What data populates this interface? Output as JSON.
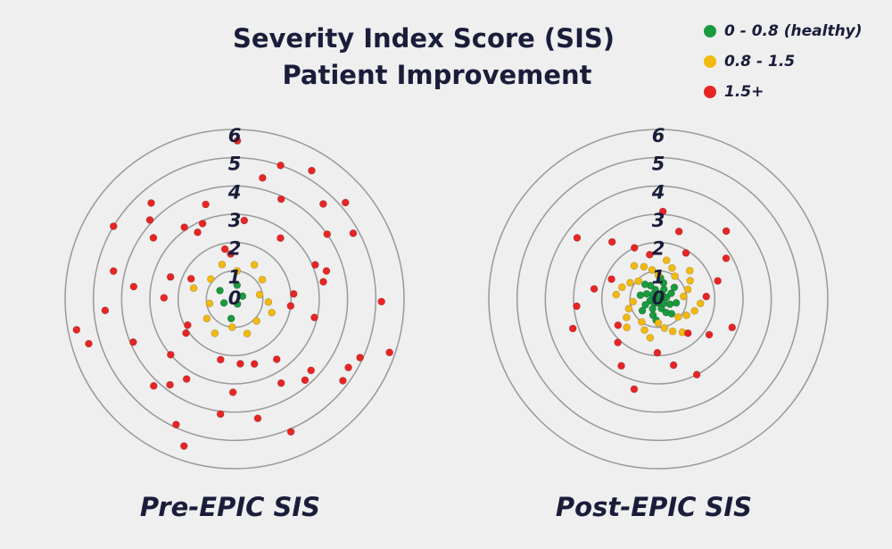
{
  "chart_data": {
    "type": "polar-scatter",
    "title": [
      "Severity Index Score (SIS)",
      "Patient Improvement"
    ],
    "series": [
      {
        "name": "0 - 0.8 (healthy)",
        "color": "#1a9a3e"
      },
      {
        "name": "0.8 - 1.5",
        "color": "#f2b90f"
      },
      {
        "name": "1.5+",
        "color": "#e82424"
      }
    ],
    "rlim": [
      0,
      6
    ],
    "rticks": [
      0,
      1,
      2,
      3,
      4,
      5,
      6
    ],
    "panels": [
      {
        "label": "Pre-EPIC SIS",
        "groups": [
          {
            "r": [
              0.3,
              0.5,
              0.6,
              0.4,
              0.7,
              0.2
            ],
            "theta": [
              20,
              80,
              150,
              200,
              260,
              300
            ]
          },
          {
            "r": [
              0.9,
              1.2,
              1.4,
              1.0,
              1.3,
              1.1,
              1.5,
              0.9,
              1.2,
              1.4,
              1.0,
              1.3,
              1.1,
              1.4,
              1.2
            ],
            "theta": [
              10,
              35,
              60,
              85,
              110,
              140,
              165,
              190,
              215,
              240,
              265,
              290,
              315,
              340,
              355
            ]
          },
          {
            "r": [
              2.1,
              3.4,
              4.8,
              5.2,
              2.7,
              3.9,
              4.4,
              5.6,
              1.8,
              2.9,
              3.1,
              4.1,
              5.0,
              2.4,
              3.6,
              4.6,
              5.4,
              1.9,
              3.0,
              3.8,
              4.9,
              2.2,
              3.3,
              4.3,
              5.1,
              2.6,
              3.7,
              4.7,
              5.8,
              2.0,
              3.2,
              4.0,
              5.3,
              2.8,
              3.5,
              4.5,
              1.7,
              2.5,
              3.9,
              4.2,
              5.5,
              2.3,
              3.4,
              4.8,
              2.9,
              3.1,
              4.6,
              5.0,
              1.6,
              2.7,
              3.6,
              4.4,
              5.7,
              2.1,
              3.3,
              4.1,
              2.4,
              3.8,
              4.9,
              5.2
            ],
            "theta": [
              5,
              17,
              29,
              41,
              53,
              65,
              77,
              89,
              101,
              113,
              125,
              137,
              149,
              161,
              173,
              185,
              197,
              209,
              221,
              233,
              245,
              257,
              269,
              281,
              293,
              305,
              317,
              329,
              341,
              353,
              11,
              35,
              59,
              83,
              107,
              131,
              155,
              179,
              203,
              227,
              251,
              275,
              299,
              323,
              347,
              23,
              47,
              71,
              95,
              119,
              143,
              167,
              191,
              215,
              239,
              263,
              287,
              311,
              335,
              359
            ]
          }
        ]
      },
      {
        "label": "Post-EPIC SIS",
        "groups": [
          {
            "r": [
              0.1,
              0.3,
              0.5,
              0.7,
              0.2,
              0.4,
              0.6,
              0.75,
              0.15,
              0.35,
              0.55,
              0.7,
              0.25,
              0.45,
              0.65,
              0.1,
              0.3,
              0.5,
              0.7,
              0.2,
              0.4,
              0.6,
              0.75,
              0.15,
              0.35,
              0.55,
              0.7,
              0.25,
              0.45,
              0.65
            ],
            "theta": [
              0,
              12,
              24,
              36,
              48,
              60,
              72,
              84,
              96,
              108,
              120,
              132,
              144,
              156,
              168,
              180,
              192,
              204,
              216,
              228,
              240,
              252,
              264,
              276,
              288,
              300,
              312,
              324,
              336,
              348
            ]
          },
          {
            "r": [
              0.9,
              1.1,
              1.3,
              1.5,
              1.0,
              1.2,
              1.4,
              0.85,
              1.05,
              1.25,
              1.45,
              0.95,
              1.15,
              1.35,
              1.5,
              0.9,
              1.1,
              1.3,
              1.5,
              1.0,
              1.2,
              1.4,
              0.85,
              1.05,
              1.25,
              1.45,
              0.95,
              1.15,
              1.35,
              1.5
            ],
            "theta": [
              6,
              18,
              30,
              42,
              54,
              66,
              78,
              90,
              102,
              114,
              126,
              138,
              150,
              162,
              174,
              186,
              198,
              210,
              222,
              234,
              246,
              258,
              270,
              282,
              294,
              306,
              318,
              330,
              342,
              354
            ]
          },
          {
            "r": [
              1.7,
              2.2,
              2.8,
              3.4,
              1.9,
              2.5,
              3.1,
              1.6,
              2.0,
              2.6,
              3.6,
              1.8,
              2.3,
              2.9,
              3.2,
              1.7,
              2.1,
              2.7,
              3.3,
              1.9,
              2.4,
              3.0,
              1.6,
              2.2,
              2.8
            ],
            "theta": [
              3,
              17,
              31,
              45,
              59,
              73,
              87,
              101,
              115,
              129,
              143,
              157,
              171,
              185,
              199,
              213,
              227,
              241,
              255,
              269,
              283,
              297,
              311,
              325,
              339
            ]
          }
        ]
      }
    ]
  }
}
